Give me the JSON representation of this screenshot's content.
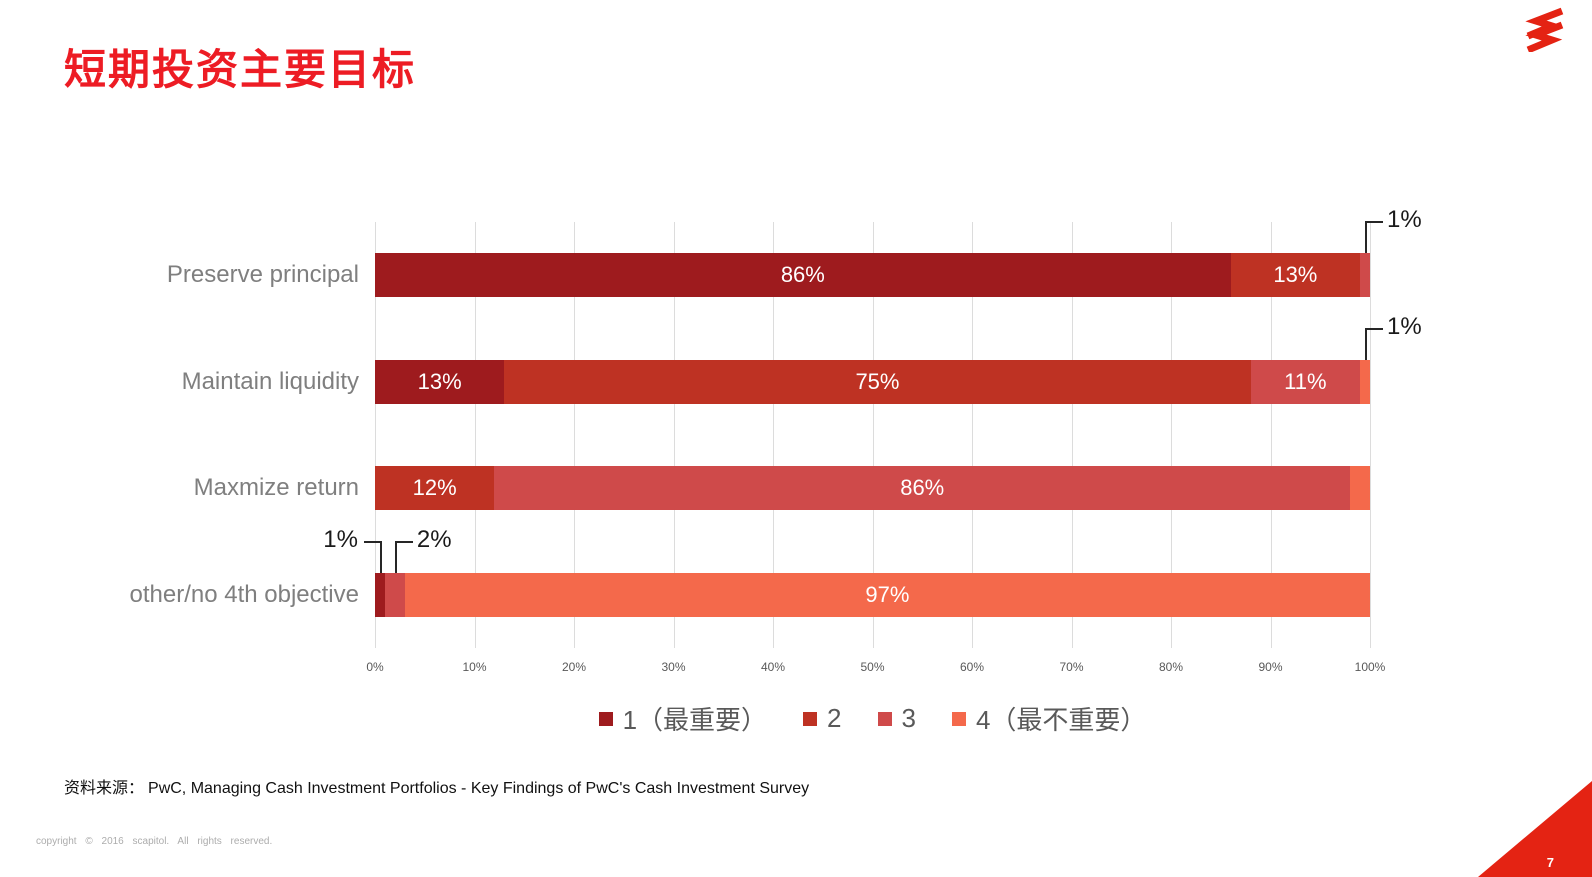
{
  "page": {
    "title": "短期投资主要目标",
    "page_number": "7",
    "footer": "copyright © 2016 scapitol. All rights reserved.",
    "source_label": "资料来源：",
    "source_text": "PwC, Managing Cash Investment Portfolios - Key Findings of PwC's Cash Investment Survey",
    "accent_color": "#ED1C24"
  },
  "chart_data": {
    "type": "bar",
    "orientation": "horizontal-stacked",
    "title": "短期投资主要目标",
    "categories": [
      "Preserve principal",
      "Maintain liquidity",
      "Maxmize return",
      "other/no 4th objective"
    ],
    "series": [
      {
        "name": "1（最重要）",
        "color": "#9E1B1E",
        "values": [
          86,
          13,
          0,
          1
        ]
      },
      {
        "name": "2",
        "color": "#BE3223",
        "values": [
          13,
          75,
          12,
          0
        ]
      },
      {
        "name": "3",
        "color": "#CF4A4A",
        "values": [
          1,
          11,
          86,
          2
        ]
      },
      {
        "name": "4（最不重要）",
        "color": "#F4694B",
        "values": [
          0,
          1,
          2,
          97
        ]
      }
    ],
    "xticks": [
      "0%",
      "10%",
      "20%",
      "30%",
      "40%",
      "50%",
      "60%",
      "70%",
      "80%",
      "90%",
      "100%"
    ],
    "xlim": [
      0,
      100
    ],
    "value_suffix": "%",
    "label_threshold": 10,
    "grid": true,
    "legend_position": "bottom",
    "callouts": [
      {
        "row": 0,
        "series_index": 2,
        "text": "1%",
        "side": "right"
      },
      {
        "row": 1,
        "series_index": 3,
        "text": "1%",
        "side": "right"
      },
      {
        "row": 3,
        "series_index": 0,
        "text": "1%",
        "side": "left"
      },
      {
        "row": 3,
        "series_index": 2,
        "text": "2%",
        "side": "right"
      }
    ]
  }
}
